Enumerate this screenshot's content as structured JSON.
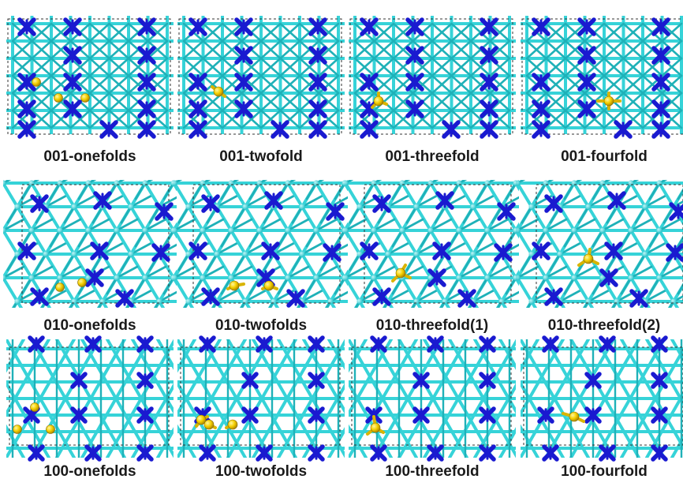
{
  "colors": {
    "bond": "#36d3d8",
    "bond_dark": "#1fb1b8",
    "dopant": "#1a1ad0",
    "adsorbate": "#f5d000",
    "box": "#333333",
    "label": "#1a1a1a"
  },
  "panels": [
    {
      "label": "001-onefolds",
      "surface": "001",
      "site": "onefold",
      "adsorbates": 3
    },
    {
      "label": "001-twofold",
      "surface": "001",
      "site": "twofold",
      "adsorbates": 1
    },
    {
      "label": "001-threefold",
      "surface": "001",
      "site": "threefold",
      "adsorbates": 1
    },
    {
      "label": "001-fourfold",
      "surface": "001",
      "site": "fourfold",
      "adsorbates": 1
    },
    {
      "label": "010-onefolds",
      "surface": "010",
      "site": "onefold",
      "adsorbates": 2
    },
    {
      "label": "010-twofolds",
      "surface": "010",
      "site": "twofold",
      "adsorbates": 2
    },
    {
      "label": "010-threefold(1)",
      "surface": "010",
      "site": "threefold",
      "adsorbates": 1
    },
    {
      "label": "010-threefold(2)",
      "surface": "010",
      "site": "threefold",
      "adsorbates": 1
    },
    {
      "label": "100-onefolds",
      "surface": "100",
      "site": "onefold",
      "adsorbates": 3
    },
    {
      "label": "100-twofolds",
      "surface": "100",
      "site": "twofold",
      "adsorbates": 3
    },
    {
      "label": "100-threefold",
      "surface": "100",
      "site": "threefold",
      "adsorbates": 1
    },
    {
      "label": "100-fourfold",
      "surface": "100",
      "site": "fourfold",
      "adsorbates": 1
    }
  ]
}
